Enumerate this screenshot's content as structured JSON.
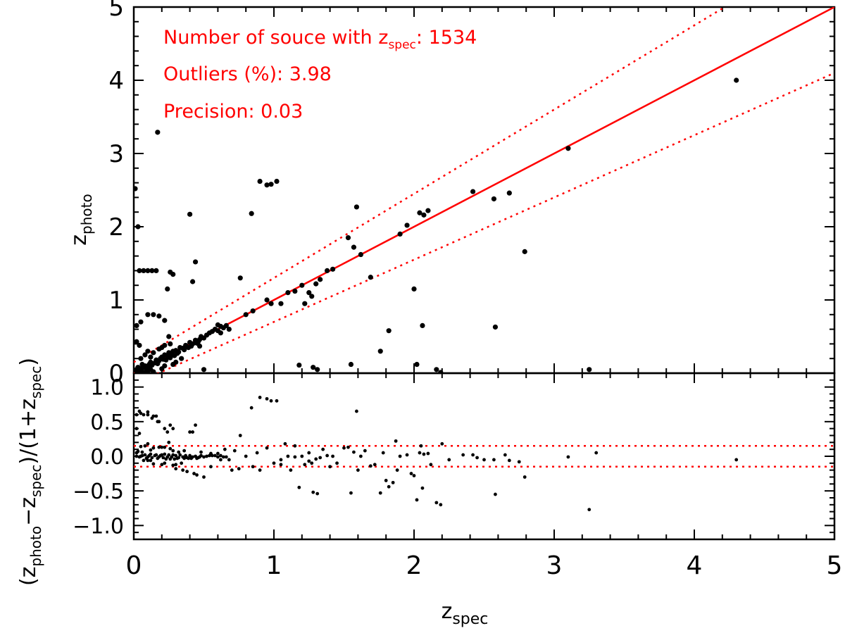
{
  "chart_data": [
    {
      "type": "scatter",
      "panel": "top",
      "xlabel": "z_spec",
      "ylabel": {
        "base": "z",
        "sub": "photo"
      },
      "xlim": [
        0,
        5
      ],
      "ylim": [
        0,
        5
      ],
      "xticks": [
        "0",
        "1",
        "2",
        "3",
        "4",
        "5"
      ],
      "yticks": [
        "0",
        "1",
        "2",
        "3",
        "4",
        "5"
      ],
      "annotations": {
        "line1_prefix": "Number of souce with ",
        "line1_z": "z",
        "line1_sub": "spec",
        "line1_suffix": ": 1534",
        "line2": "Outliers (%): 3.98",
        "line3": "Precision: 0.03"
      },
      "lines": [
        {
          "name": "one-to-one",
          "style": "solid",
          "color": "#ff0000",
          "slope": 1,
          "offset": 0
        },
        {
          "name": "upper-outlier-bound",
          "style": "dotted",
          "color": "#ff0000",
          "type": "1+z scaled",
          "frac": 0.15
        },
        {
          "name": "lower-outlier-bound",
          "style": "dotted",
          "color": "#ff0000",
          "type": "1+z scaled",
          "frac": -0.15
        }
      ],
      "points": [
        [
          0.02,
          0.05
        ],
        [
          0.03,
          0.08
        ],
        [
          0.05,
          0.04
        ],
        [
          0.06,
          0.12
        ],
        [
          0.08,
          0.1
        ],
        [
          0.1,
          0.09
        ],
        [
          0.12,
          0.15
        ],
        [
          0.13,
          0.11
        ],
        [
          0.15,
          0.14
        ],
        [
          0.16,
          0.18
        ],
        [
          0.18,
          0.17
        ],
        [
          0.2,
          0.22
        ],
        [
          0.21,
          0.19
        ],
        [
          0.22,
          0.25
        ],
        [
          0.24,
          0.23
        ],
        [
          0.25,
          0.28
        ],
        [
          0.27,
          0.26
        ],
        [
          0.28,
          0.3
        ],
        [
          0.3,
          0.31
        ],
        [
          0.32,
          0.29
        ],
        [
          0.33,
          0.35
        ],
        [
          0.35,
          0.34
        ],
        [
          0.37,
          0.38
        ],
        [
          0.38,
          0.36
        ],
        [
          0.4,
          0.42
        ],
        [
          0.42,
          0.4
        ],
        [
          0.44,
          0.45
        ],
        [
          0.46,
          0.43
        ],
        [
          0.48,
          0.5
        ],
        [
          0.5,
          0.48
        ],
        [
          0.52,
          0.52
        ],
        [
          0.54,
          0.55
        ],
        [
          0.56,
          0.57
        ],
        [
          0.58,
          0.6
        ],
        [
          0.6,
          0.58
        ],
        [
          0.62,
          0.64
        ],
        [
          0.64,
          0.62
        ],
        [
          0.66,
          0.65
        ],
        [
          0.05,
          0.2
        ],
        [
          0.08,
          0.25
        ],
        [
          0.1,
          0.3
        ],
        [
          0.12,
          0.22
        ],
        [
          0.14,
          0.28
        ],
        [
          0.18,
          0.33
        ],
        [
          0.2,
          0.35
        ],
        [
          0.22,
          0.38
        ],
        [
          0.26,
          0.4
        ],
        [
          0.07,
          0.01
        ],
        [
          0.1,
          0.03
        ],
        [
          0.12,
          0.05
        ],
        [
          0.14,
          0.02
        ],
        [
          0.2,
          0.06
        ],
        [
          0.22,
          0.1
        ],
        [
          0.28,
          0.12
        ],
        [
          0.3,
          0.15
        ],
        [
          0.34,
          0.2
        ],
        [
          0.02,
          0.02
        ],
        [
          0.04,
          0.03
        ],
        [
          0.06,
          0.07
        ],
        [
          0.09,
          0.06
        ],
        [
          0.11,
          0.12
        ],
        [
          0.17,
          0.13
        ],
        [
          0.19,
          0.2
        ],
        [
          0.23,
          0.18
        ],
        [
          0.26,
          0.21
        ],
        [
          0.29,
          0.24
        ],
        [
          0.31,
          0.27
        ],
        [
          0.36,
          0.32
        ],
        [
          0.39,
          0.35
        ],
        [
          0.41,
          0.37
        ],
        [
          0.45,
          0.41
        ],
        [
          0.47,
          0.46
        ],
        [
          0.01,
          2.52
        ],
        [
          0.03,
          2.0
        ],
        [
          0.04,
          1.4
        ],
        [
          0.07,
          1.4
        ],
        [
          0.1,
          1.4
        ],
        [
          0.13,
          1.4
        ],
        [
          0.16,
          1.4
        ],
        [
          0.02,
          0.65
        ],
        [
          0.05,
          0.7
        ],
        [
          0.1,
          0.8
        ],
        [
          0.14,
          0.8
        ],
        [
          0.18,
          0.78
        ],
        [
          0.22,
          0.72
        ],
        [
          0.25,
          0.5
        ],
        [
          0.02,
          0.43
        ],
        [
          0.04,
          0.38
        ],
        [
          0.17,
          3.29
        ],
        [
          0.24,
          1.15
        ],
        [
          0.26,
          1.38
        ],
        [
          0.28,
          1.35
        ],
        [
          0.4,
          2.17
        ],
        [
          0.44,
          1.52
        ],
        [
          0.42,
          1.25
        ],
        [
          0.47,
          0.37
        ],
        [
          0.5,
          0.05
        ],
        [
          0.6,
          0.66
        ],
        [
          0.62,
          0.55
        ],
        [
          0.68,
          0.6
        ],
        [
          0.76,
          1.3
        ],
        [
          0.8,
          0.8
        ],
        [
          0.84,
          2.18
        ],
        [
          0.85,
          0.85
        ],
        [
          0.9,
          2.62
        ],
        [
          0.95,
          2.57
        ],
        [
          0.98,
          2.58
        ],
        [
          1.02,
          2.62
        ],
        [
          0.95,
          1.0
        ],
        [
          0.98,
          0.95
        ],
        [
          1.05,
          0.95
        ],
        [
          1.1,
          1.1
        ],
        [
          1.15,
          1.12
        ],
        [
          1.2,
          1.2
        ],
        [
          1.22,
          0.95
        ],
        [
          1.25,
          1.1
        ],
        [
          1.27,
          1.05
        ],
        [
          1.3,
          1.22
        ],
        [
          1.33,
          1.28
        ],
        [
          1.38,
          1.4
        ],
        [
          1.42,
          1.42
        ],
        [
          1.53,
          1.85
        ],
        [
          1.57,
          1.72
        ],
        [
          1.59,
          2.27
        ],
        [
          1.62,
          1.62
        ],
        [
          1.69,
          1.31
        ],
        [
          1.76,
          0.3
        ],
        [
          1.82,
          0.58
        ],
        [
          1.9,
          1.9
        ],
        [
          1.95,
          2.02
        ],
        [
          2.0,
          1.15
        ],
        [
          2.04,
          2.19
        ],
        [
          2.07,
          2.16
        ],
        [
          2.1,
          2.22
        ],
        [
          2.06,
          0.65
        ],
        [
          2.02,
          0.12
        ],
        [
          2.16,
          0.05
        ],
        [
          2.19,
          0.01
        ],
        [
          2.42,
          2.48
        ],
        [
          2.57,
          2.38
        ],
        [
          2.68,
          2.46
        ],
        [
          2.58,
          0.63
        ],
        [
          2.79,
          1.66
        ],
        [
          3.1,
          3.07
        ],
        [
          3.25,
          0.05
        ],
        [
          4.3,
          4.0
        ],
        [
          1.18,
          0.11
        ],
        [
          1.31,
          0.05
        ],
        [
          1.55,
          0.12
        ],
        [
          1.28,
          0.08
        ]
      ]
    },
    {
      "type": "scatter",
      "panel": "bottom",
      "xlabel": "z_spec",
      "ylabel": "(z_photo - z_spec)/(1+z_spec)",
      "xlim": [
        0,
        5
      ],
      "ylim": [
        -1.2,
        1.2
      ],
      "yticks": [
        "-1.0",
        "-0.5",
        "0.0",
        "0.5",
        "1.0"
      ],
      "lines": [
        {
          "name": "upper-outlier-bound",
          "style": "dotted",
          "color": "#ff0000",
          "y": 0.15
        },
        {
          "name": "lower-outlier-bound",
          "style": "dotted",
          "color": "#ff0000",
          "y": -0.15
        }
      ],
      "points": [
        [
          0.02,
          0.05
        ],
        [
          0.03,
          0.07
        ],
        [
          0.05,
          0.0
        ],
        [
          0.06,
          0.06
        ],
        [
          0.08,
          0.02
        ],
        [
          0.1,
          -0.01
        ],
        [
          0.12,
          0.03
        ],
        [
          0.13,
          -0.02
        ],
        [
          0.15,
          0.01
        ],
        [
          0.16,
          0.02
        ],
        [
          0.18,
          -0.01
        ],
        [
          0.2,
          0.02
        ],
        [
          0.21,
          -0.02
        ],
        [
          0.22,
          0.03
        ],
        [
          0.24,
          -0.01
        ],
        [
          0.25,
          0.02
        ],
        [
          0.27,
          -0.01
        ],
        [
          0.28,
          0.02
        ],
        [
          0.3,
          0.01
        ],
        [
          0.32,
          -0.02
        ],
        [
          0.33,
          0.02
        ],
        [
          0.35,
          -0.01
        ],
        [
          0.37,
          0.01
        ],
        [
          0.38,
          -0.02
        ],
        [
          0.4,
          0.01
        ],
        [
          0.42,
          -0.01
        ],
        [
          0.44,
          0.0
        ],
        [
          0.46,
          -0.02
        ],
        [
          0.48,
          0.01
        ],
        [
          0.5,
          -0.01
        ],
        [
          0.52,
          0.0
        ],
        [
          0.54,
          0.01
        ],
        [
          0.56,
          0.01
        ],
        [
          0.58,
          0.01
        ],
        [
          0.6,
          -0.01
        ],
        [
          0.62,
          0.01
        ],
        [
          0.64,
          -0.01
        ],
        [
          0.66,
          -0.01
        ],
        [
          0.05,
          0.14
        ],
        [
          0.08,
          0.15
        ],
        [
          0.1,
          0.18
        ],
        [
          0.12,
          0.09
        ],
        [
          0.14,
          0.12
        ],
        [
          0.18,
          0.13
        ],
        [
          0.2,
          0.13
        ],
        [
          0.22,
          0.13
        ],
        [
          0.26,
          0.11
        ],
        [
          0.07,
          -0.06
        ],
        [
          0.1,
          -0.06
        ],
        [
          0.12,
          -0.06
        ],
        [
          0.14,
          -0.11
        ],
        [
          0.2,
          -0.12
        ],
        [
          0.22,
          -0.1
        ],
        [
          0.28,
          -0.13
        ],
        [
          0.3,
          -0.12
        ],
        [
          0.34,
          -0.1
        ],
        [
          0.02,
          0.0
        ],
        [
          0.04,
          -0.01
        ],
        [
          0.06,
          0.01
        ],
        [
          0.09,
          -0.03
        ],
        [
          0.11,
          0.01
        ],
        [
          0.17,
          -0.03
        ],
        [
          0.19,
          0.01
        ],
        [
          0.23,
          -0.04
        ],
        [
          0.26,
          -0.04
        ],
        [
          0.29,
          -0.04
        ],
        [
          0.31,
          -0.03
        ],
        [
          0.36,
          -0.03
        ],
        [
          0.39,
          -0.03
        ],
        [
          0.41,
          -0.03
        ],
        [
          0.45,
          -0.03
        ],
        [
          0.47,
          -0.01
        ],
        [
          0.04,
          0.65
        ],
        [
          0.07,
          0.6
        ],
        [
          0.1,
          0.6
        ],
        [
          0.13,
          0.55
        ],
        [
          0.16,
          0.58
        ],
        [
          0.02,
          0.6
        ],
        [
          0.05,
          0.62
        ],
        [
          0.1,
          0.64
        ],
        [
          0.14,
          0.58
        ],
        [
          0.18,
          0.5
        ],
        [
          0.22,
          0.4
        ],
        [
          0.25,
          0.2
        ],
        [
          0.02,
          0.4
        ],
        [
          0.04,
          0.33
        ],
        [
          0.17,
          0.5
        ],
        [
          0.24,
          0.35
        ],
        [
          0.26,
          0.45
        ],
        [
          0.28,
          0.4
        ],
        [
          0.4,
          0.35
        ],
        [
          0.44,
          0.45
        ],
        [
          0.42,
          0.35
        ],
        [
          0.5,
          -0.3
        ],
        [
          0.6,
          0.04
        ],
        [
          0.62,
          -0.05
        ],
        [
          0.68,
          -0.05
        ],
        [
          0.76,
          0.3
        ],
        [
          0.8,
          0.0
        ],
        [
          0.84,
          0.7
        ],
        [
          0.9,
          0.85
        ],
        [
          0.95,
          0.83
        ],
        [
          0.98,
          0.8
        ],
        [
          1.02,
          0.8
        ],
        [
          1.05,
          -0.05
        ],
        [
          1.1,
          0.0
        ],
        [
          1.15,
          -0.01
        ],
        [
          1.2,
          0.0
        ],
        [
          1.22,
          -0.12
        ],
        [
          1.25,
          -0.07
        ],
        [
          1.27,
          -0.1
        ],
        [
          1.3,
          -0.04
        ],
        [
          1.33,
          -0.02
        ],
        [
          1.38,
          0.01
        ],
        [
          1.42,
          0.0
        ],
        [
          1.53,
          0.13
        ],
        [
          1.57,
          0.06
        ],
        [
          1.59,
          0.65
        ],
        [
          1.62,
          0.0
        ],
        [
          1.69,
          -0.14
        ],
        [
          1.76,
          -0.53
        ],
        [
          1.82,
          -0.44
        ],
        [
          1.9,
          0.0
        ],
        [
          1.95,
          0.02
        ],
        [
          2.0,
          -0.28
        ],
        [
          2.04,
          0.05
        ],
        [
          2.07,
          0.03
        ],
        [
          2.1,
          0.04
        ],
        [
          2.06,
          -0.46
        ],
        [
          2.02,
          -0.63
        ],
        [
          2.16,
          -0.67
        ],
        [
          2.19,
          -0.7
        ],
        [
          2.42,
          0.02
        ],
        [
          2.57,
          -0.05
        ],
        [
          2.68,
          -0.06
        ],
        [
          2.58,
          -0.55
        ],
        [
          2.79,
          -0.3
        ],
        [
          3.1,
          -0.01
        ],
        [
          3.25,
          -0.77
        ],
        [
          4.3,
          -0.05
        ],
        [
          1.18,
          -0.45
        ],
        [
          1.31,
          -0.54
        ],
        [
          1.55,
          -0.53
        ],
        [
          1.28,
          -0.52
        ],
        [
          0.3,
          -0.18
        ],
        [
          0.35,
          -0.2
        ],
        [
          0.38,
          -0.22
        ],
        [
          0.43,
          -0.25
        ],
        [
          0.45,
          -0.27
        ],
        [
          0.55,
          -0.15
        ],
        [
          0.7,
          -0.2
        ],
        [
          0.75,
          -0.18
        ],
        [
          0.85,
          -0.15
        ],
        [
          0.9,
          -0.2
        ],
        [
          1.0,
          -0.1
        ],
        [
          1.05,
          -0.12
        ],
        [
          1.12,
          -0.2
        ],
        [
          1.4,
          -0.15
        ],
        [
          1.45,
          -0.1
        ],
        [
          1.6,
          -0.2
        ],
        [
          1.72,
          -0.12
        ],
        [
          1.8,
          -0.35
        ],
        [
          1.85,
          -0.38
        ],
        [
          1.88,
          -0.2
        ],
        [
          1.98,
          -0.25
        ],
        [
          2.12,
          -0.12
        ],
        [
          2.25,
          -0.05
        ],
        [
          2.35,
          0.02
        ],
        [
          2.5,
          -0.05
        ],
        [
          2.65,
          0.02
        ],
        [
          2.75,
          -0.08
        ],
        [
          3.3,
          0.05
        ],
        [
          1.15,
          0.15
        ],
        [
          1.35,
          0.1
        ],
        [
          1.5,
          0.12
        ],
        [
          1.65,
          0.08
        ],
        [
          1.78,
          0.05
        ],
        [
          1.87,
          0.22
        ],
        [
          2.05,
          0.15
        ],
        [
          2.2,
          0.18
        ],
        [
          2.45,
          -0.02
        ],
        [
          0.65,
          0.1
        ],
        [
          0.72,
          0.08
        ],
        [
          0.88,
          0.05
        ],
        [
          0.95,
          0.12
        ],
        [
          1.08,
          0.18
        ],
        [
          1.25,
          0.05
        ],
        [
          0.55,
          0.04
        ],
        [
          0.48,
          0.06
        ],
        [
          0.36,
          0.08
        ],
        [
          0.32,
          0.06
        ],
        [
          0.28,
          0.08
        ]
      ]
    }
  ]
}
